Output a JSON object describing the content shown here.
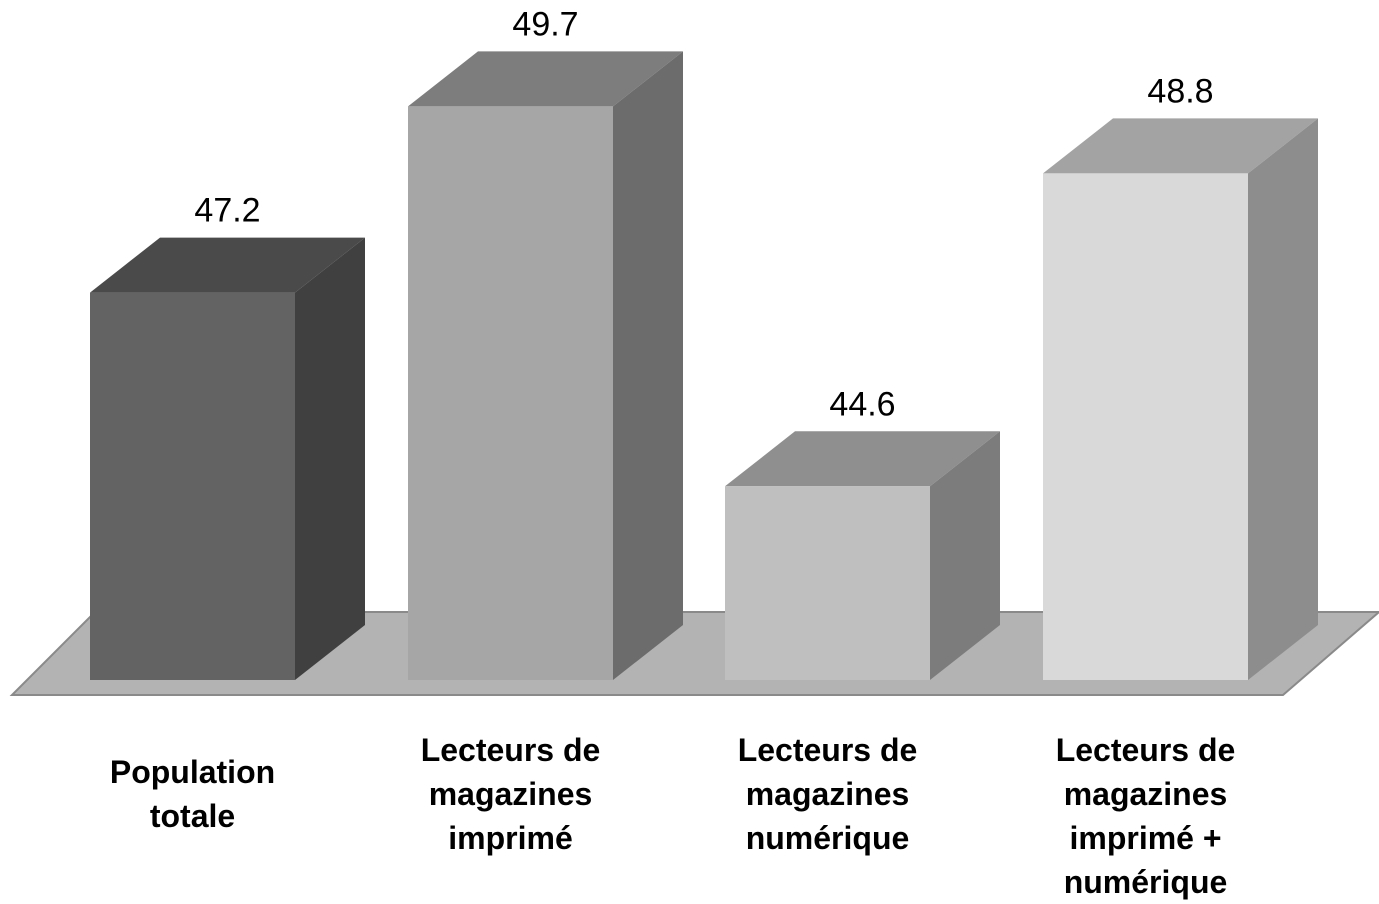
{
  "chart_data": {
    "type": "bar3d",
    "categories": [
      "Population totale",
      "Lecteurs de magazines imprimé",
      "Lecteurs de magazines numérique",
      "Lecteurs de magazines imprimé + numérique"
    ],
    "values": [
      47.2,
      49.7,
      44.6,
      48.8
    ],
    "colors": [
      "#636363",
      "#a6a6a6",
      "#bfbfbf",
      "#d9d9d9"
    ],
    "ylim": [
      42,
      50
    ]
  }
}
